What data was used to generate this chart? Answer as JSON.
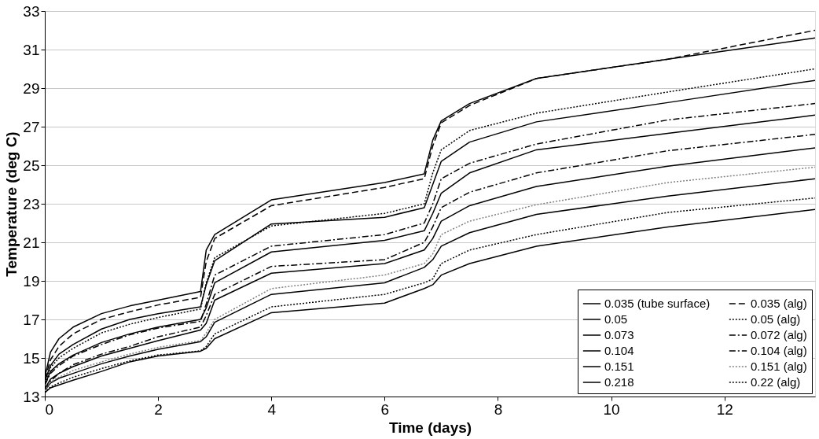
{
  "chart_data": {
    "type": "line",
    "xlabel": "Time (days)",
    "ylabel": "Temperature (deg C)",
    "x": [
      0,
      0.1,
      0.25,
      0.5,
      1,
      1.5,
      2,
      2.75,
      2.85,
      3,
      4,
      6,
      6.7,
      6.85,
      7,
      7.5,
      8.68,
      11,
      13.6
    ],
    "xlim": [
      0,
      13.6
    ],
    "xticks": [
      0,
      2,
      4,
      6,
      8,
      10,
      12
    ],
    "ylim": [
      13,
      33
    ],
    "yticks": [
      13,
      15,
      17,
      19,
      21,
      23,
      25,
      27,
      29,
      31,
      33
    ],
    "grid": "y",
    "legend": "bottom right",
    "marker": "none",
    "series": [
      {
        "name": "0.035 (tube surface)",
        "color": "#000000",
        "line_style": "solid",
        "values": [
          14.0,
          15.3,
          16.0,
          16.6,
          17.3,
          17.7,
          18.0,
          18.45,
          20.6,
          21.4,
          23.2,
          24.1,
          24.55,
          26.3,
          27.3,
          28.2,
          29.5,
          30.5,
          31.6
        ]
      },
      {
        "name": "0.05",
        "color": "#000000",
        "line_style": "solid",
        "values": [
          13.8,
          14.6,
          15.2,
          15.7,
          16.5,
          17.0,
          17.3,
          17.65,
          18.8,
          20.05,
          21.95,
          22.3,
          22.8,
          24.0,
          25.2,
          26.2,
          27.25,
          28.25,
          29.4
        ]
      },
      {
        "name": "0.073",
        "color": "#000000",
        "line_style": "solid",
        "values": [
          13.6,
          14.3,
          14.7,
          15.15,
          15.8,
          16.25,
          16.6,
          17.0,
          17.6,
          18.9,
          20.5,
          21.1,
          21.6,
          22.5,
          23.55,
          24.6,
          25.8,
          26.65,
          27.6
        ]
      },
      {
        "name": "0.104",
        "color": "#000000",
        "line_style": "solid",
        "values": [
          13.4,
          13.9,
          14.2,
          14.55,
          15.1,
          15.5,
          15.9,
          16.45,
          16.8,
          18.0,
          19.4,
          19.9,
          20.6,
          21.2,
          22.1,
          22.9,
          23.9,
          24.95,
          25.9
        ]
      },
      {
        "name": "0.151",
        "color": "#000000",
        "line_style": "solid",
        "values": [
          13.3,
          13.7,
          13.95,
          14.2,
          14.7,
          15.1,
          15.45,
          15.85,
          16.1,
          16.85,
          18.3,
          18.9,
          19.7,
          20.1,
          20.8,
          21.5,
          22.45,
          23.4,
          24.3
        ]
      },
      {
        "name": "0.218",
        "color": "#000000",
        "line_style": "solid",
        "values": [
          13.2,
          13.45,
          13.6,
          13.85,
          14.3,
          14.8,
          15.1,
          15.35,
          15.5,
          16.0,
          17.35,
          17.85,
          18.6,
          18.8,
          19.3,
          19.9,
          20.8,
          21.8,
          22.7
        ]
      },
      {
        "name": "0.035 (alg)",
        "color": "#000000",
        "line_style": "dashed",
        "values": [
          13.9,
          14.9,
          15.6,
          16.25,
          17.0,
          17.4,
          17.75,
          18.15,
          20.0,
          21.2,
          22.9,
          23.85,
          24.3,
          26.0,
          27.2,
          28.1,
          29.5,
          30.5,
          32.0
        ]
      },
      {
        "name": "0.05 (alg)",
        "color": "#000000",
        "line_style": "dotted",
        "values": [
          13.7,
          14.5,
          15.0,
          15.5,
          16.3,
          16.75,
          17.1,
          17.54,
          18.9,
          20.2,
          21.85,
          22.5,
          23.0,
          24.6,
          25.8,
          26.8,
          27.7,
          28.8,
          30.0
        ]
      },
      {
        "name": "0.072 (alg)",
        "color": "#000000",
        "line_style": "dashdot",
        "values": [
          13.6,
          14.2,
          14.6,
          15.1,
          15.7,
          16.2,
          16.55,
          16.9,
          17.8,
          19.3,
          20.8,
          21.4,
          22.0,
          23.0,
          24.3,
          25.1,
          26.1,
          27.35,
          28.2
        ]
      },
      {
        "name": "0.104 (alg)",
        "color": "#000000",
        "line_style": "dashdot",
        "values": [
          13.4,
          13.8,
          14.2,
          14.65,
          15.2,
          15.6,
          16.1,
          16.6,
          17.2,
          18.3,
          19.75,
          20.1,
          21.0,
          21.8,
          22.8,
          23.6,
          24.6,
          25.75,
          26.6
        ]
      },
      {
        "name": "0.151 (alg)",
        "color": "#808080",
        "line_style": "dotted",
        "values": [
          13.3,
          13.75,
          14.0,
          14.35,
          14.8,
          15.2,
          15.55,
          15.9,
          16.3,
          17.0,
          18.6,
          19.3,
          19.9,
          20.4,
          21.4,
          22.1,
          22.95,
          24.1,
          24.9
        ]
      },
      {
        "name": "0.22 (alg)",
        "color": "#000000",
        "line_style": "dotted",
        "values": [
          13.2,
          13.5,
          13.7,
          14.0,
          14.45,
          14.85,
          15.15,
          15.37,
          15.6,
          16.25,
          17.65,
          18.3,
          18.9,
          19.1,
          19.9,
          20.6,
          21.4,
          22.55,
          23.3
        ]
      }
    ]
  }
}
